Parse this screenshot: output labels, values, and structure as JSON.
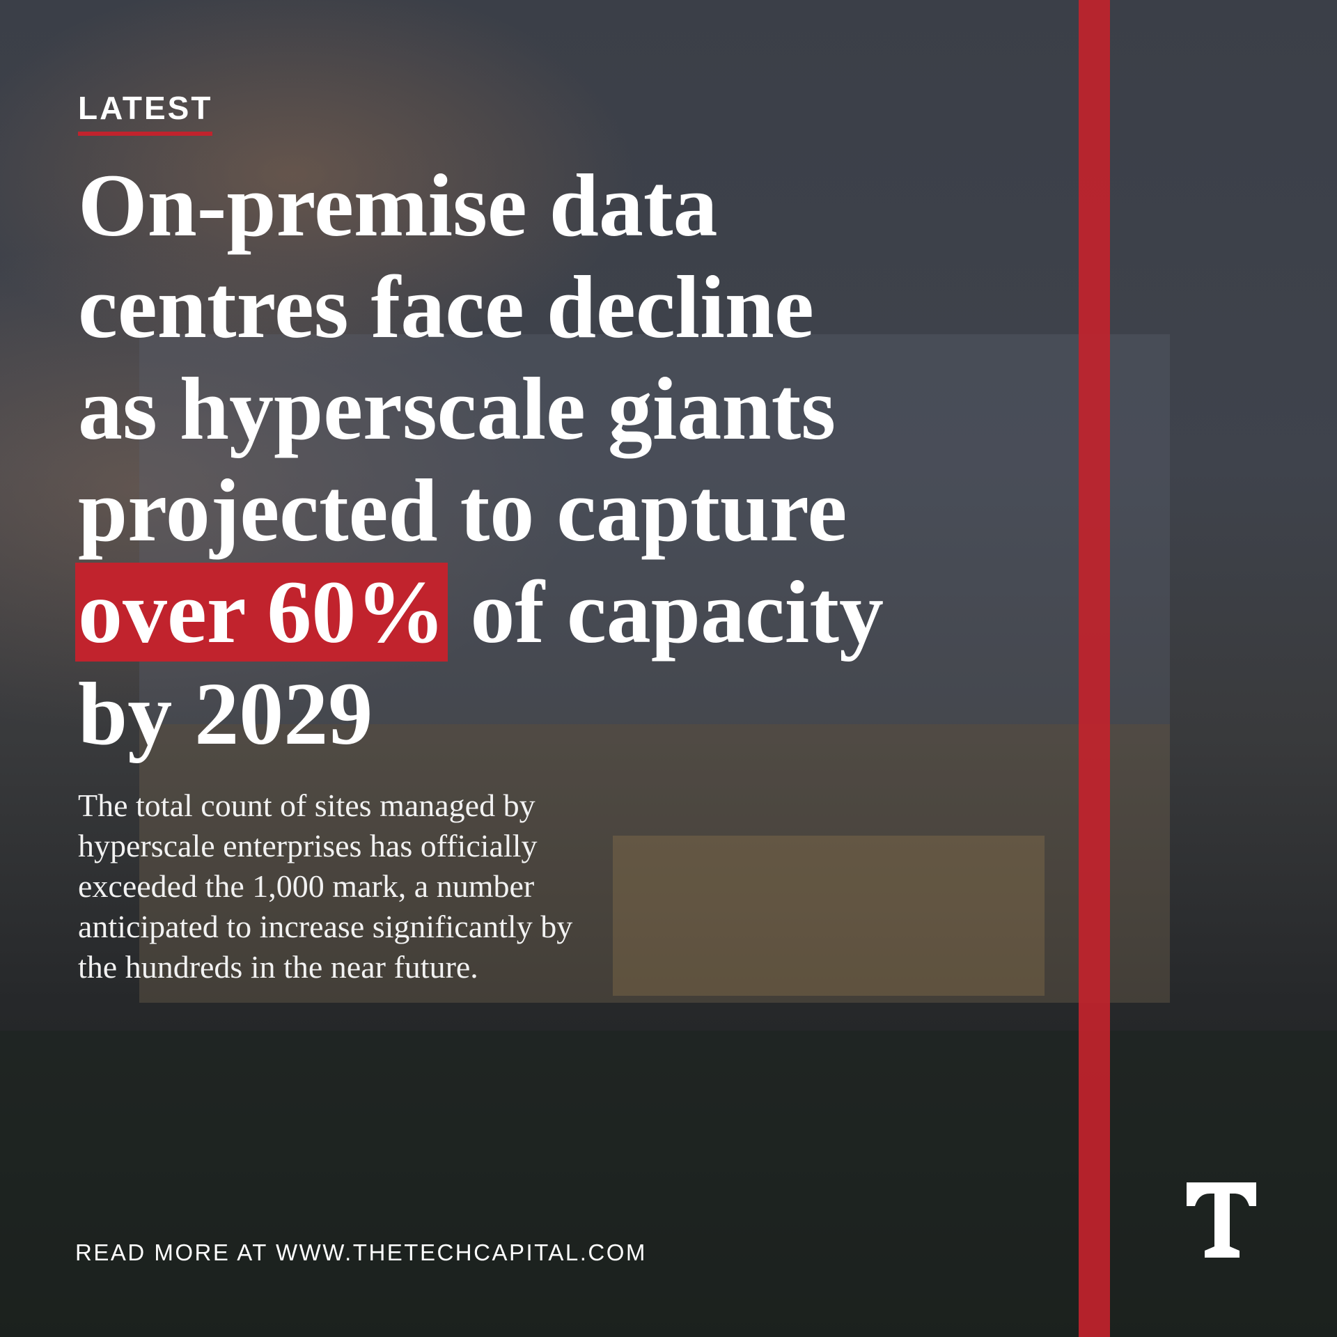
{
  "label": "LATEST",
  "headline": {
    "lines": [
      "On-premise data",
      "centres face decline",
      "as hyperscale giants",
      "projected to capture"
    ],
    "highlight": "over 60%",
    "line_after_highlight": "of capacity",
    "last_line": "by 2029"
  },
  "body": {
    "lines": [
      "The total count of sites managed by",
      "hyperscale enterprises has officially",
      "exceeded the 1,000 mark, a number",
      "anticipated to increase significantly by",
      "the hundreds in the near future."
    ]
  },
  "footer": "READ MORE AT WWW.THETECHCAPITAL.COM"
}
